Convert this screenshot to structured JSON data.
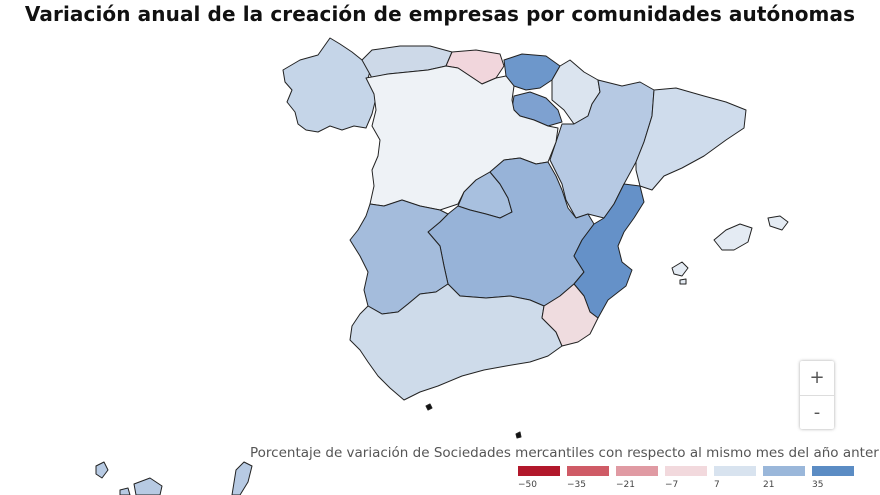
{
  "title": "Variación anual de la creación de empresas por comunidades autónomas",
  "zoom": {
    "in_label": "+",
    "out_label": "-"
  },
  "legend": {
    "title": "Porcentaje de variación de Sociedades mercantiles con respecto al mismo mes del año anterior",
    "ticks": [
      "−50",
      "−35",
      "−21",
      "−7",
      "7",
      "21",
      "35"
    ],
    "colors": [
      "#b2182b",
      "#cf5b66",
      "#e09aa3",
      "#f2d9dd",
      "#d8e3ef",
      "#9ab7da",
      "#5b8cc4"
    ]
  },
  "regions": [
    {
      "name": "Galicia",
      "color": "#c5d5e8"
    },
    {
      "name": "Asturias",
      "color": "#cdd9e8"
    },
    {
      "name": "Cantabria",
      "color": "#f1d6dc"
    },
    {
      "name": "País Vasco",
      "color": "#6d97cb"
    },
    {
      "name": "Navarra",
      "color": "#dbe4ef"
    },
    {
      "name": "La Rioja",
      "color": "#7ea1d0"
    },
    {
      "name": "Aragón",
      "color": "#b6c9e3"
    },
    {
      "name": "Cataluña",
      "color": "#cfdcec"
    },
    {
      "name": "Castilla y León",
      "color": "#eef2f6"
    },
    {
      "name": "Comunidad de Madrid",
      "color": "#a8c0df"
    },
    {
      "name": "Castilla-La Mancha",
      "color": "#97b3d8"
    },
    {
      "name": "Comunitat Valenciana",
      "color": "#6591c8"
    },
    {
      "name": "Extremadura",
      "color": "#a4bcdc"
    },
    {
      "name": "Andalucía",
      "color": "#cedbea"
    },
    {
      "name": "Región de Murcia",
      "color": "#efdcdf"
    },
    {
      "name": "Illes Balears",
      "color": "#e4ebf3"
    },
    {
      "name": "Canarias",
      "color": "#b7cae3"
    }
  ]
}
